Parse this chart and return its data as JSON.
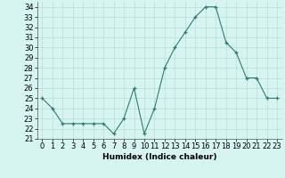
{
  "x": [
    0,
    1,
    2,
    3,
    4,
    5,
    6,
    7,
    8,
    9,
    10,
    11,
    12,
    13,
    14,
    15,
    16,
    17,
    18,
    19,
    20,
    21,
    22,
    23
  ],
  "y": [
    25,
    24,
    22.5,
    22.5,
    22.5,
    22.5,
    22.5,
    21.5,
    23,
    26,
    21.5,
    24,
    28,
    30,
    31.5,
    33,
    34,
    34,
    30.5,
    29.5,
    27,
    27,
    25,
    25
  ],
  "title": "",
  "xlabel": "Humidex (Indice chaleur)",
  "ylabel": "",
  "ylim": [
    21,
    34.5
  ],
  "xlim": [
    -0.5,
    23.5
  ],
  "yticks": [
    21,
    22,
    23,
    24,
    25,
    26,
    27,
    28,
    29,
    30,
    31,
    32,
    33,
    34
  ],
  "xticks": [
    0,
    1,
    2,
    3,
    4,
    5,
    6,
    7,
    8,
    9,
    10,
    11,
    12,
    13,
    14,
    15,
    16,
    17,
    18,
    19,
    20,
    21,
    22,
    23
  ],
  "line_color": "#2e7d6e",
  "marker": "+",
  "bg_color": "#d6f5f0",
  "grid_color": "#b8ddd8",
  "label_fontsize": 6.5,
  "tick_fontsize": 6
}
